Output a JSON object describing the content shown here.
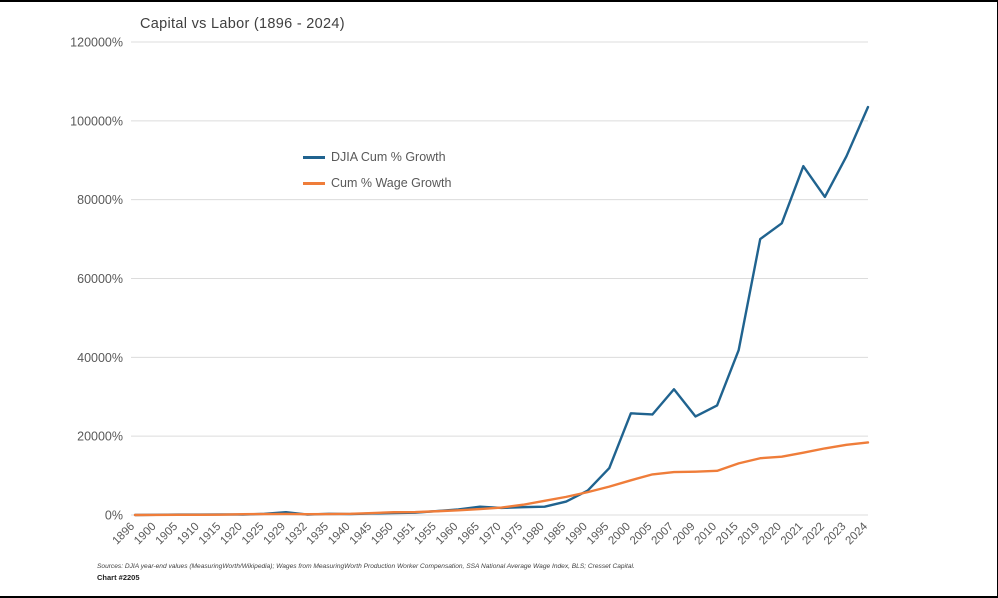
{
  "chart_data": {
    "type": "line",
    "title": "Capital vs Labor (1896 - 2024)",
    "xlabel": "",
    "ylabel": "",
    "ylim": [
      0,
      120000
    ],
    "grid": true,
    "legend_position": "inside-upper-left",
    "yticks": [
      0,
      20000,
      40000,
      60000,
      80000,
      100000,
      120000
    ],
    "ytick_labels": [
      "0%",
      "20000%",
      "40000%",
      "60000%",
      "80000%",
      "100000%",
      "120000%"
    ],
    "categories": [
      "1896",
      "1900",
      "1905",
      "1910",
      "1915",
      "1920",
      "1925",
      "1929",
      "1932",
      "1935",
      "1940",
      "1945",
      "1950",
      "1951",
      "1955",
      "1960",
      "1965",
      "1970",
      "1975",
      "1980",
      "1985",
      "1990",
      "1995",
      "2000",
      "2005",
      "2007",
      "2009",
      "2010",
      "2015",
      "2019",
      "2020",
      "2021",
      "2022",
      "2023",
      "2024"
    ],
    "series": [
      {
        "name": "DJIA Cum % Growth",
        "color": "#20638f",
        "values": [
          0,
          60,
          120,
          100,
          150,
          100,
          300,
          700,
          100,
          300,
          250,
          400,
          500,
          600,
          1000,
          1400,
          2100,
          1800,
          2000,
          2100,
          3400,
          6200,
          11900,
          25800,
          25500,
          31900,
          25000,
          27800,
          41800,
          70000,
          74000,
          88500,
          80700,
          91000,
          103500
        ]
      },
      {
        "name": "Cum % Wage Growth",
        "color": "#ef7d3a",
        "values": [
          0,
          20,
          40,
          60,
          90,
          200,
          250,
          280,
          200,
          250,
          300,
          500,
          700,
          750,
          950,
          1200,
          1500,
          1900,
          2600,
          3600,
          4600,
          5800,
          7200,
          8800,
          10300,
          10900,
          11000,
          11200,
          13100,
          14400,
          14800,
          15800,
          16900,
          17800,
          18400
        ]
      }
    ]
  },
  "footer": {
    "sources": "Sources: DJIA year-end values (MeasuringWorth/Wikipedia); Wages from MeasuringWorth Production Worker Compensation, SSA National Average Wage Index, BLS; Cresset Capital.",
    "chart_number": "Chart #2205"
  },
  "style": {
    "gridline_color": "#dcdcdc",
    "axis_text_color": "#595959",
    "title_color": "#404040"
  }
}
